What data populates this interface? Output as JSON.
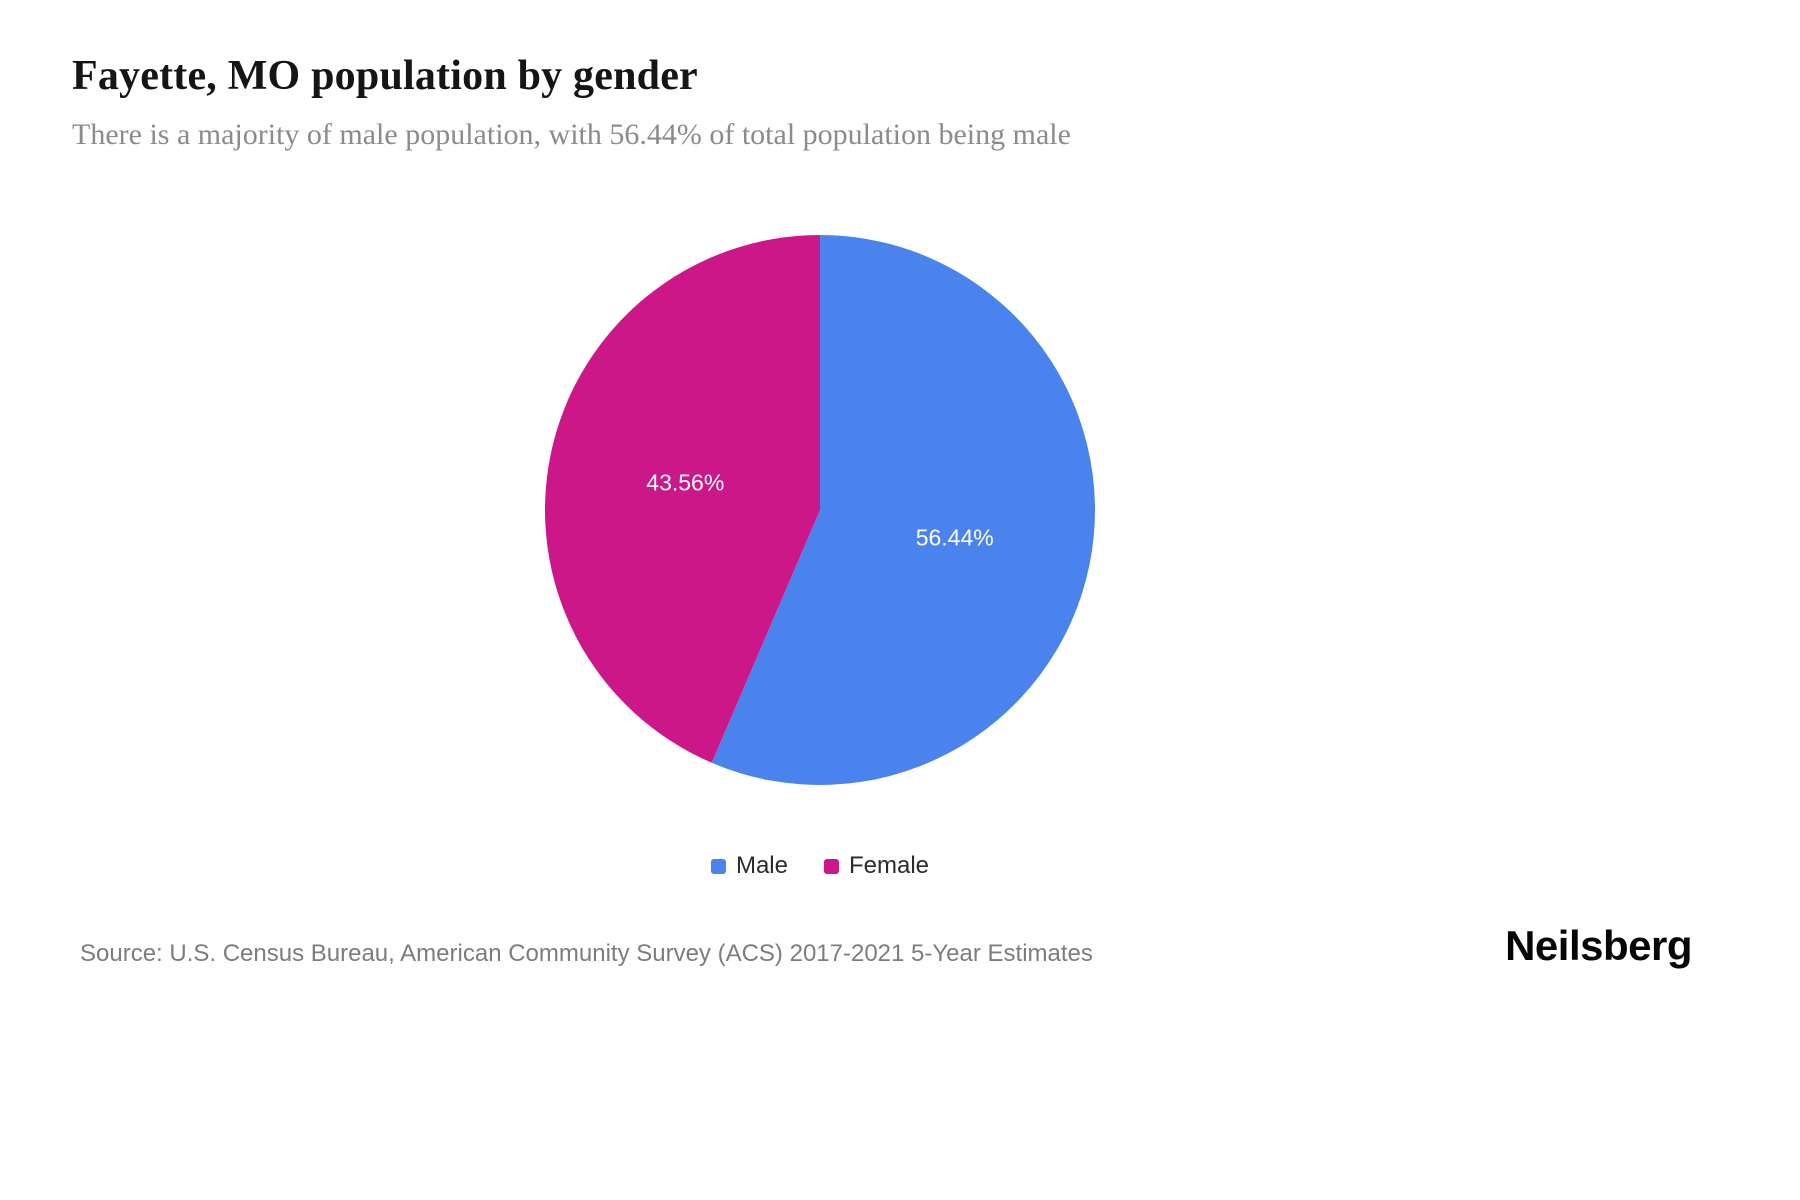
{
  "header": {
    "title": "Fayette, MO population by gender",
    "subtitle": "There is a majority of male population, with 56.44% of total population being male"
  },
  "chart_data": {
    "type": "pie",
    "title": "Fayette, MO population by gender",
    "slices": [
      {
        "label": "Male",
        "value": 56.44,
        "display": "56.44%",
        "color": "#4a82ee"
      },
      {
        "label": "Female",
        "value": 43.56,
        "display": "43.56%",
        "color": "#cc1788"
      }
    ],
    "start_angle_deg": 0,
    "direction": "clockwise",
    "label_color": "#ffffff",
    "legend_position": "bottom"
  },
  "legend": {
    "items": [
      {
        "label": "Male",
        "color": "#4a82ee"
      },
      {
        "label": "Female",
        "color": "#cc1788"
      }
    ]
  },
  "footer": {
    "source": "Source: U.S. Census Bureau, American Community Survey (ACS) 2017-2021 5-Year Estimates",
    "brand": "Neilsberg"
  }
}
